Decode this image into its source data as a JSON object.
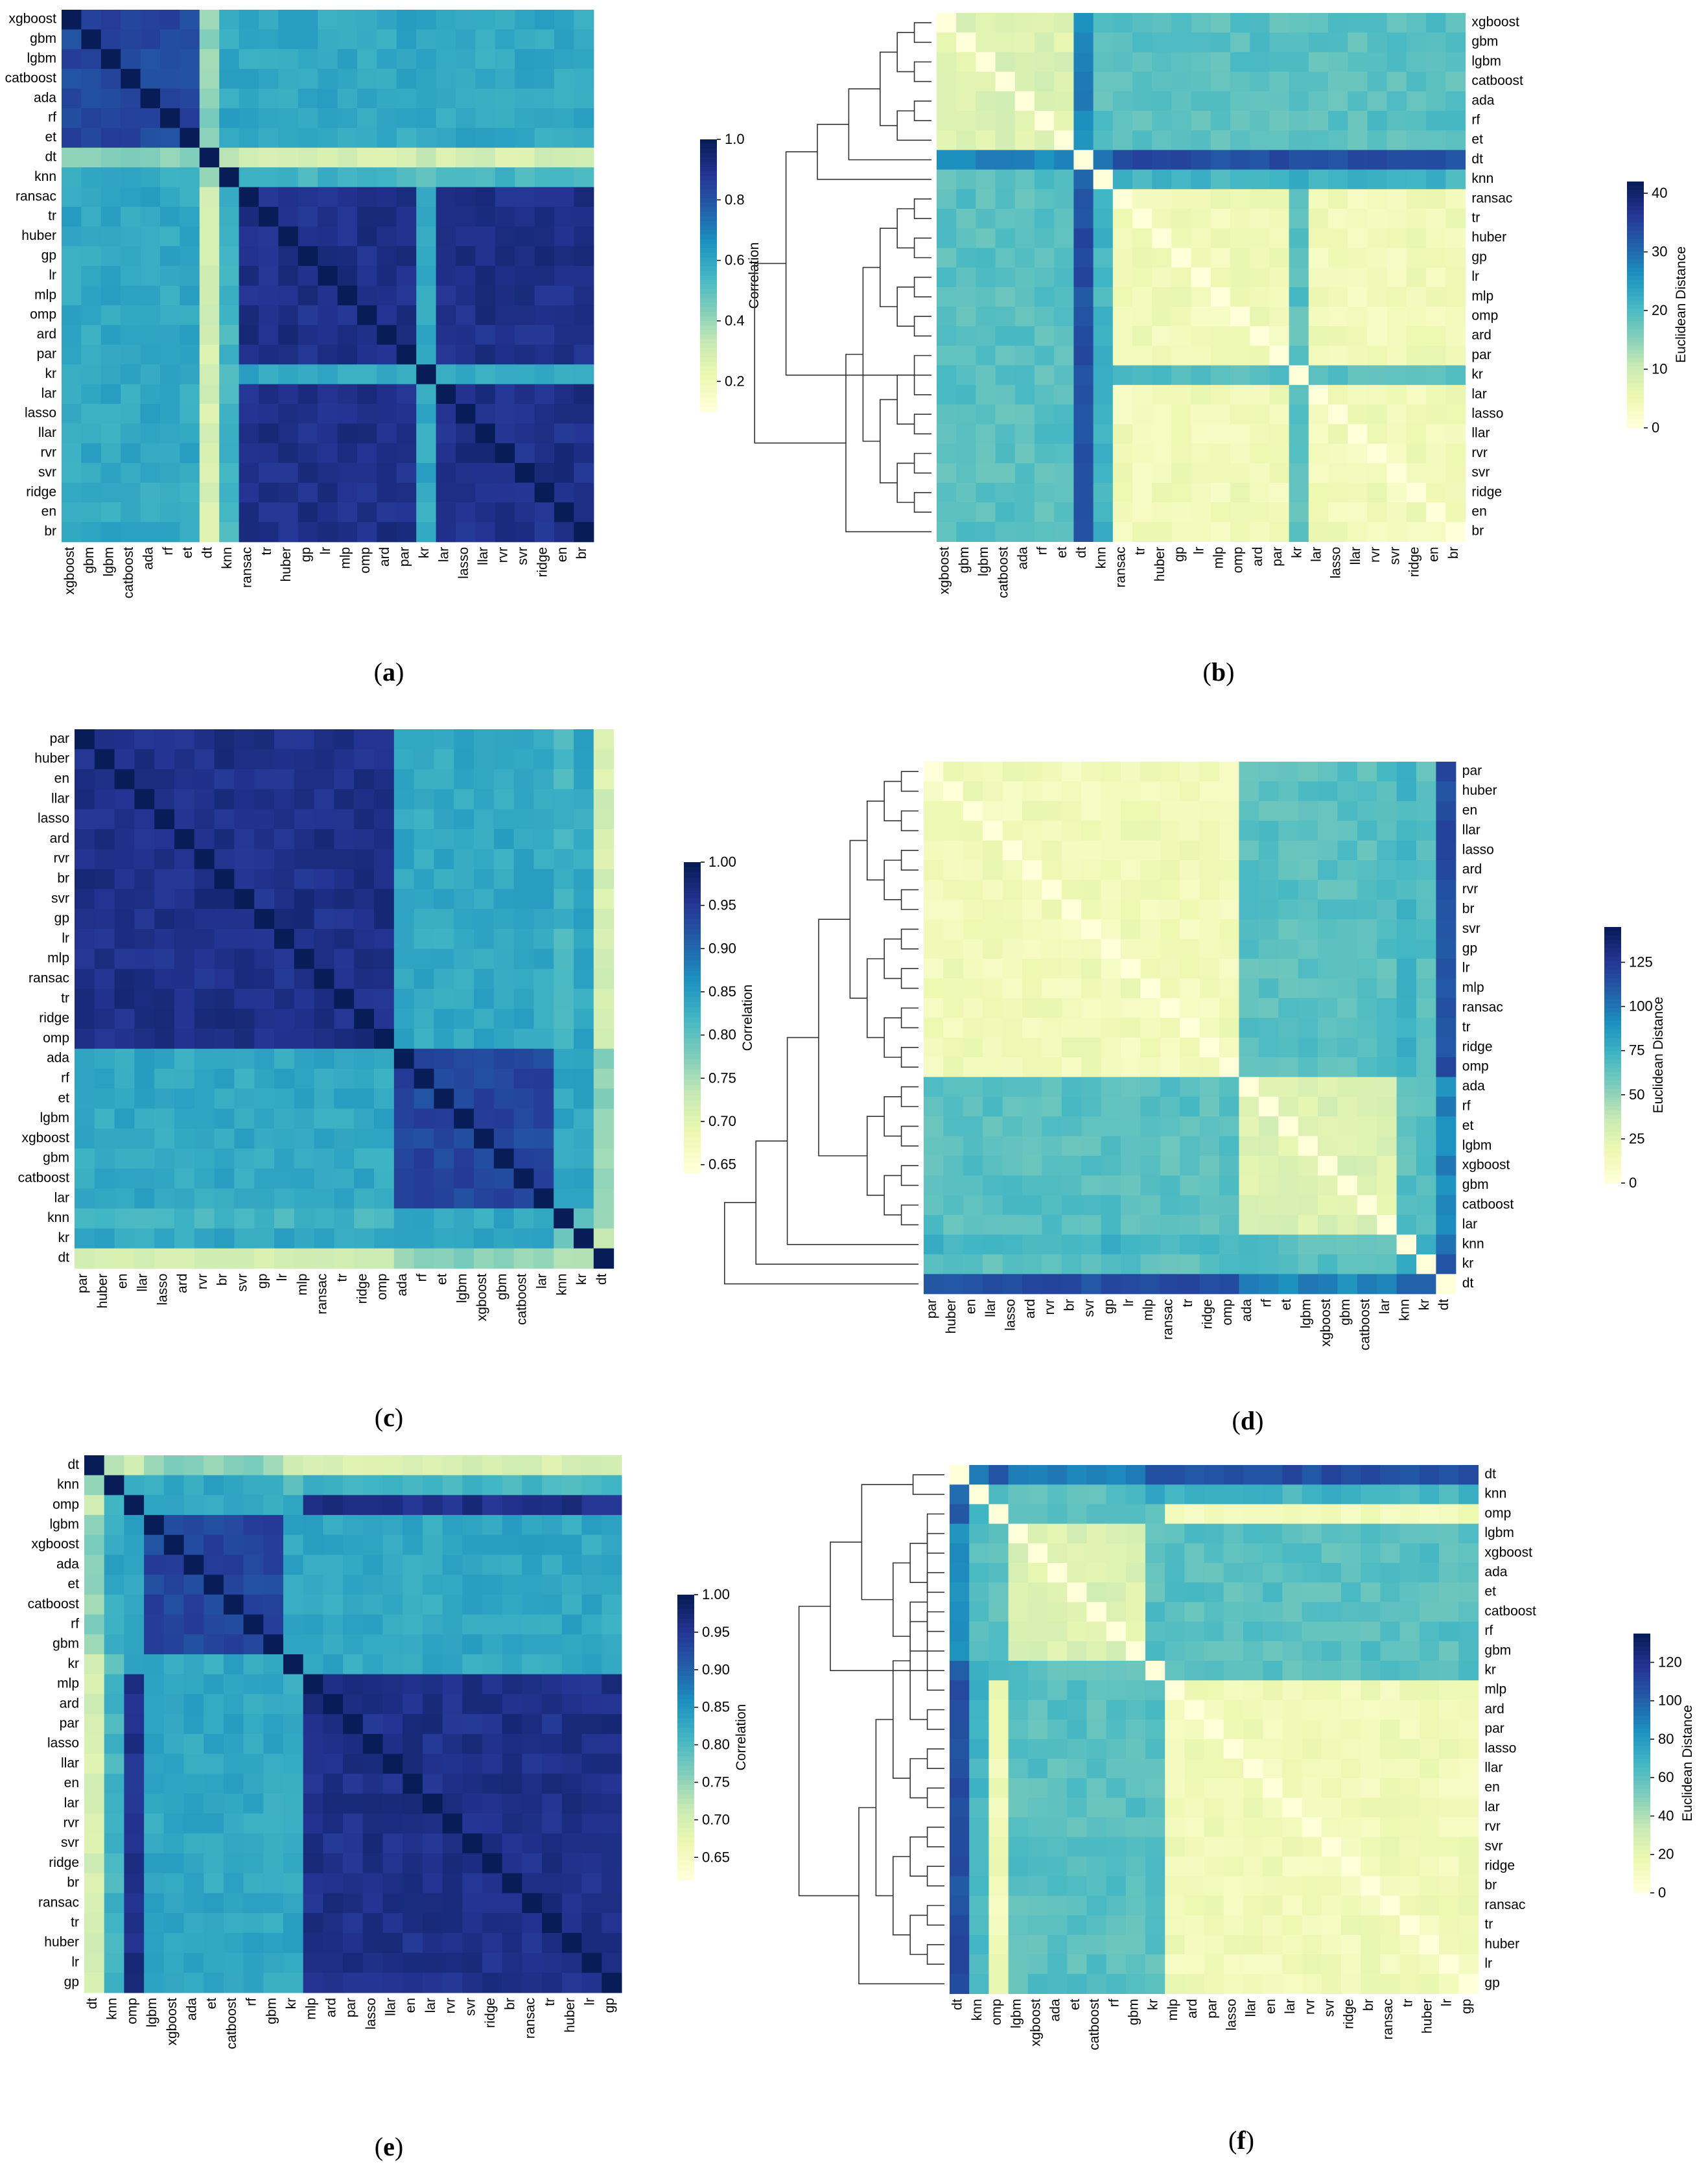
{
  "colorscale": [
    "#ffffd9",
    "#edf8b1",
    "#c7e9b4",
    "#7fcdbb",
    "#41b6c4",
    "#1d91c0",
    "#225ea8",
    "#253494",
    "#081d58"
  ],
  "chart_data": [
    {
      "id": "a",
      "type": "heatmap",
      "caption": "a",
      "metric": "Correlation",
      "colorbar_label": "Correlation",
      "vmin": 0.1,
      "vmax": 1.0,
      "colorbar_ticks": [
        "1.0",
        "0.8",
        "0.6",
        "0.4",
        "0.2"
      ],
      "colorbar_values": [
        1.0,
        0.8,
        0.6,
        0.4,
        0.2
      ],
      "dendrogram": false,
      "labels": [
        "xgboost",
        "gbm",
        "lgbm",
        "catboost",
        "ada",
        "rf",
        "et",
        "dt",
        "knn",
        "ransac",
        "tr",
        "huber",
        "gp",
        "lr",
        "mlp",
        "omp",
        "ard",
        "par",
        "kr",
        "lar",
        "lasso",
        "llar",
        "rvr",
        "svr",
        "ridge",
        "en",
        "br"
      ],
      "groups": [
        0,
        0,
        0,
        0,
        0,
        0,
        0,
        3,
        2,
        1,
        1,
        1,
        1,
        1,
        1,
        1,
        1,
        1,
        4,
        1,
        1,
        1,
        1,
        1,
        1,
        1,
        1
      ]
    },
    {
      "id": "b",
      "type": "heatmap",
      "caption": "b",
      "metric": "Euclidean Distance",
      "colorbar_label": "Euclidean Distance",
      "vmin": 0,
      "vmax": 42,
      "colorbar_ticks": [
        "40",
        "30",
        "20",
        "10",
        "0"
      ],
      "colorbar_values": [
        40,
        30,
        20,
        10,
        0
      ],
      "dendrogram": true,
      "labels": [
        "xgboost",
        "gbm",
        "lgbm",
        "catboost",
        "ada",
        "rf",
        "et",
        "dt",
        "knn",
        "ransac",
        "tr",
        "huber",
        "gp",
        "lr",
        "mlp",
        "omp",
        "ard",
        "par",
        "kr",
        "lar",
        "lasso",
        "llar",
        "rvr",
        "svr",
        "ridge",
        "en",
        "br"
      ],
      "groups": [
        0,
        0,
        0,
        0,
        0,
        0,
        0,
        3,
        2,
        1,
        1,
        1,
        1,
        1,
        1,
        1,
        1,
        1,
        4,
        1,
        1,
        1,
        1,
        1,
        1,
        1,
        1
      ]
    },
    {
      "id": "c",
      "type": "heatmap",
      "caption": "c",
      "metric": "Correlation",
      "colorbar_label": "Correlation",
      "vmin": 0.64,
      "vmax": 1.0,
      "colorbar_ticks": [
        "1.00",
        "0.95",
        "0.90",
        "0.85",
        "0.80",
        "0.75",
        "0.70",
        "0.65"
      ],
      "colorbar_values": [
        1.0,
        0.95,
        0.9,
        0.85,
        0.8,
        0.75,
        0.7,
        0.65
      ],
      "dendrogram": false,
      "labels": [
        "par",
        "huber",
        "en",
        "llar",
        "lasso",
        "ard",
        "rvr",
        "br",
        "svr",
        "gp",
        "lr",
        "mlp",
        "ransac",
        "tr",
        "ridge",
        "omp",
        "ada",
        "rf",
        "et",
        "lgbm",
        "xgboost",
        "gbm",
        "catboost",
        "lar",
        "knn",
        "kr",
        "dt"
      ],
      "groups": [
        1,
        1,
        1,
        1,
        1,
        1,
        1,
        1,
        1,
        1,
        1,
        1,
        1,
        1,
        1,
        1,
        0,
        0,
        0,
        0,
        0,
        0,
        0,
        0,
        2,
        4,
        3
      ]
    },
    {
      "id": "d",
      "type": "heatmap",
      "caption": "d",
      "metric": "Euclidean Distance",
      "colorbar_label": "Euclidean Distance",
      "vmin": 0,
      "vmax": 145,
      "colorbar_ticks": [
        "125",
        "100",
        "75",
        "50",
        "25",
        "0"
      ],
      "colorbar_values": [
        125,
        100,
        75,
        50,
        25,
        0
      ],
      "dendrogram": true,
      "labels": [
        "par",
        "huber",
        "en",
        "llar",
        "lasso",
        "ard",
        "rvr",
        "br",
        "svr",
        "gp",
        "lr",
        "mlp",
        "ransac",
        "tr",
        "ridge",
        "omp",
        "ada",
        "rf",
        "et",
        "lgbm",
        "xgboost",
        "gbm",
        "catboost",
        "lar",
        "knn",
        "kr",
        "dt"
      ],
      "groups": [
        1,
        1,
        1,
        1,
        1,
        1,
        1,
        1,
        1,
        1,
        1,
        1,
        1,
        1,
        1,
        1,
        0,
        0,
        0,
        0,
        0,
        0,
        0,
        0,
        2,
        4,
        3
      ]
    },
    {
      "id": "e",
      "type": "heatmap",
      "caption": "e",
      "metric": "Correlation",
      "colorbar_label": "Correlation",
      "vmin": 0.62,
      "vmax": 1.0,
      "colorbar_ticks": [
        "1.00",
        "0.95",
        "0.90",
        "0.85",
        "0.80",
        "0.75",
        "0.70",
        "0.65"
      ],
      "colorbar_values": [
        1.0,
        0.95,
        0.9,
        0.85,
        0.8,
        0.75,
        0.7,
        0.65
      ],
      "dendrogram": false,
      "labels": [
        "dt",
        "knn",
        "omp",
        "lgbm",
        "xgboost",
        "ada",
        "et",
        "catboost",
        "rf",
        "gbm",
        "kr",
        "mlp",
        "ard",
        "par",
        "lasso",
        "llar",
        "en",
        "lar",
        "rvr",
        "svr",
        "ridge",
        "br",
        "ransac",
        "tr",
        "huber",
        "lr",
        "gp"
      ],
      "groups": [
        3,
        2,
        1,
        0,
        0,
        0,
        0,
        0,
        0,
        0,
        4,
        1,
        1,
        1,
        1,
        1,
        1,
        1,
        1,
        1,
        1,
        1,
        1,
        1,
        1,
        1,
        1
      ]
    },
    {
      "id": "f",
      "type": "heatmap",
      "caption": "f",
      "metric": "Euclidean Distance",
      "colorbar_label": "Euclidean Distance",
      "vmin": 0,
      "vmax": 135,
      "colorbar_ticks": [
        "120",
        "100",
        "80",
        "60",
        "40",
        "20",
        "0"
      ],
      "colorbar_values": [
        120,
        100,
        80,
        60,
        40,
        20,
        0
      ],
      "dendrogram": true,
      "labels": [
        "dt",
        "knn",
        "omp",
        "lgbm",
        "xgboost",
        "ada",
        "et",
        "catboost",
        "rf",
        "gbm",
        "kr",
        "mlp",
        "ard",
        "par",
        "lasso",
        "llar",
        "en",
        "lar",
        "rvr",
        "svr",
        "ridge",
        "br",
        "ransac",
        "tr",
        "huber",
        "lr",
        "gp"
      ],
      "groups": [
        3,
        2,
        1,
        0,
        0,
        0,
        0,
        0,
        0,
        0,
        4,
        1,
        1,
        1,
        1,
        1,
        1,
        1,
        1,
        1,
        1,
        1,
        1,
        1,
        1,
        1,
        1
      ]
    }
  ]
}
